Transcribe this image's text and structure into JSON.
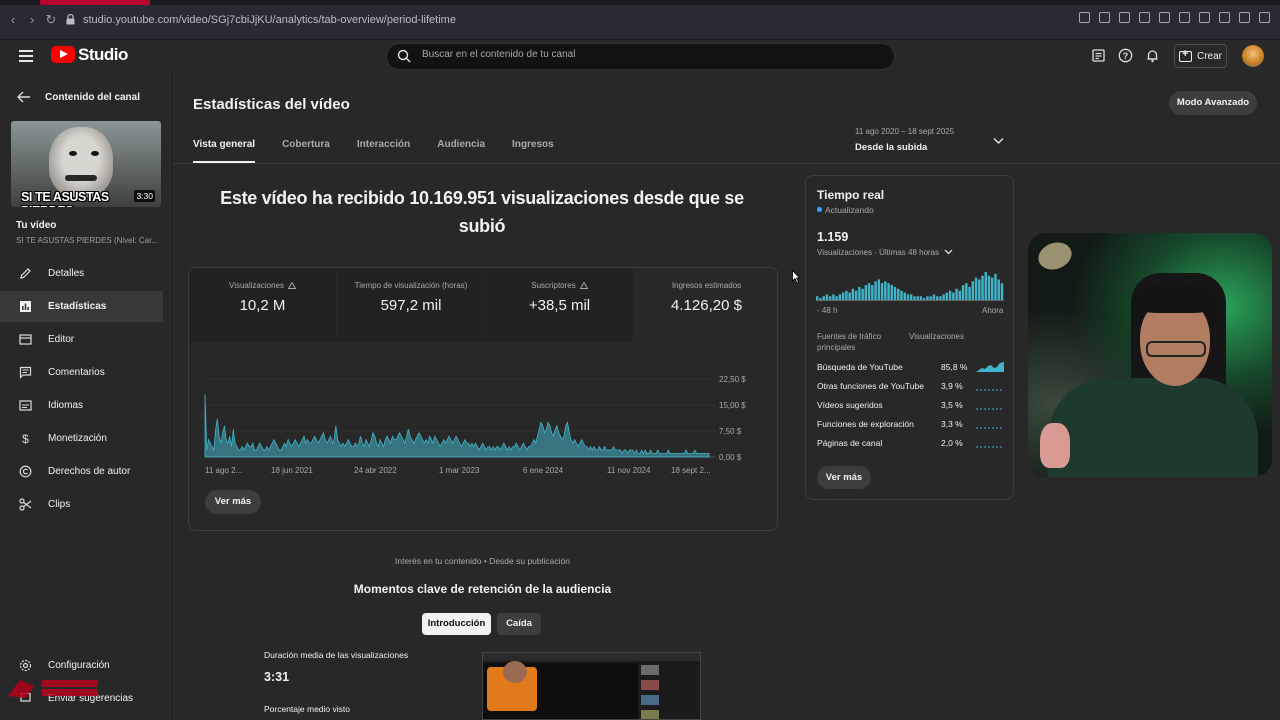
{
  "browser": {
    "url": "studio.youtube.com/video/SGj7cbiJjKU/analytics/tab-overview/period-lifetime"
  },
  "header": {
    "app_name": "Studio",
    "search_placeholder": "Buscar en el contenido de tu canal",
    "create_label": "Crear"
  },
  "sidebar": {
    "back_label": "Contenido del canal",
    "thumbnail_caption": "SI TE ASUSTAS PIERDES",
    "thumbnail_duration": "3:30",
    "your_video_label": "Tu vídeo",
    "your_video_title": "SI TE ASUSTAS PIERDES (Nivel: Car...",
    "items": [
      {
        "label": "Detalles",
        "icon": "pencil-icon"
      },
      {
        "label": "Estadísticas",
        "icon": "analytics-icon",
        "active": true
      },
      {
        "label": "Editor",
        "icon": "editor-icon"
      },
      {
        "label": "Comentarios",
        "icon": "comments-icon"
      },
      {
        "label": "Idiomas",
        "icon": "subtitles-icon"
      },
      {
        "label": "Monetización",
        "icon": "dollar-icon"
      },
      {
        "label": "Derechos de autor",
        "icon": "copyright-icon"
      },
      {
        "label": "Clips",
        "icon": "scissors-icon"
      }
    ],
    "settings_label": "Configuración",
    "feedback_label": "Enviar sugerencias"
  },
  "main": {
    "title": "Estadísticas del vídeo",
    "advanced_mode": "Modo Avanzado",
    "tabs": [
      {
        "label": "Vista general",
        "active": true
      },
      {
        "label": "Cobertura"
      },
      {
        "label": "Interacción"
      },
      {
        "label": "Audiencia"
      },
      {
        "label": "Ingresos"
      }
    ],
    "date_range": {
      "dates": "11 ago 2020 – 18 sept 2025",
      "label": "Desde la subida"
    },
    "headline": "Este vídeo ha recibido 10.169.951 visualizaciones desde que se subió",
    "metrics": [
      {
        "label": "Visualizaciones",
        "value": "10,2 M",
        "warning": true
      },
      {
        "label": "Tiempo de visualización (horas)",
        "value": "597,2 mil"
      },
      {
        "label": "Suscriptores",
        "value": "+38,5 mil",
        "warning": true
      },
      {
        "label": "Ingresos estimados",
        "value": "4.126,20 $"
      }
    ],
    "see_more": "Ver más",
    "interest_note": "Interés en tu contenido • Desde su publicación",
    "moments_title": "Momentos clave de retención de la audiencia",
    "moment_tabs": [
      "Introducción",
      "Caída"
    ],
    "avg_duration_label": "Duración media de las visualizaciones",
    "avg_duration_value": "3:31",
    "avg_percent_label": "Porcentaje medio visto"
  },
  "realtime": {
    "title": "Tiempo real",
    "status": "Actualizando",
    "count": "1.159",
    "subtitle": "Visualizaciones · Últimas 48 horas",
    "axis_start": "- 48 h",
    "axis_end": "Ahora",
    "col_source": "Fuentes de tráfico principales",
    "col_views": "Visualizaciones",
    "sources": [
      {
        "name": "Búsqueda de YouTube",
        "pct": "85,8 %"
      },
      {
        "name": "Otras funciones de YouTube",
        "pct": "3,9 %"
      },
      {
        "name": "Vídeos sugeridos",
        "pct": "3,5 %"
      },
      {
        "name": "Funciones de exploración",
        "pct": "3,3 %"
      },
      {
        "name": "Páginas de canal",
        "pct": "2,0 %"
      }
    ],
    "see_more": "Ver más"
  },
  "chart_data": {
    "type": "area",
    "x_tick_labels": [
      "11 ago 2...",
      "18 jun 2021",
      "24 abr 2022",
      "1 mar 2023",
      "6 ene 2024",
      "11 nov 2024",
      "18 sept 2..."
    ],
    "y_tick_labels": [
      "22,50 $",
      "15,00 $",
      "7,50 $",
      "0,00 $"
    ],
    "ylim": [
      0,
      22.5
    ],
    "color": "#41b4c9",
    "values": [
      18,
      2,
      5,
      4,
      3,
      2,
      8,
      11,
      6,
      4,
      7,
      9,
      5,
      4,
      6,
      3,
      8,
      4,
      3,
      2,
      2,
      3,
      2,
      3,
      4,
      3,
      3,
      4,
      2,
      2,
      3,
      4,
      3,
      2,
      2,
      3,
      2,
      3,
      4,
      5,
      4,
      3,
      2,
      2,
      3,
      4,
      3,
      5,
      4,
      3,
      4,
      5,
      4,
      3,
      4,
      5,
      6,
      4,
      5,
      4,
      4,
      5,
      6,
      5,
      4,
      5,
      6,
      7,
      5,
      4,
      5,
      6,
      4,
      5,
      9,
      5,
      4,
      3,
      4,
      3,
      4,
      5,
      4,
      3,
      3,
      4,
      3,
      4,
      6,
      4,
      3,
      5,
      4,
      3,
      5,
      7,
      6,
      4,
      3,
      5,
      4,
      3,
      5,
      6,
      5,
      4,
      6,
      5,
      5,
      6,
      7,
      6,
      5,
      4,
      6,
      8,
      6,
      5,
      4,
      5,
      6,
      7,
      6,
      5,
      4,
      5,
      4,
      6,
      5,
      4,
      6,
      5,
      4,
      3,
      4,
      5,
      4,
      5,
      6,
      5,
      4,
      5,
      6,
      5,
      4,
      3,
      4,
      5,
      4,
      4,
      3,
      4,
      3,
      4,
      3,
      2,
      3,
      4,
      3,
      2,
      3,
      3,
      2,
      3,
      2,
      3,
      3,
      2,
      3,
      4,
      3,
      2,
      3,
      2,
      3,
      3,
      4,
      3,
      2,
      3,
      4,
      3,
      2,
      3,
      3,
      4,
      5,
      4,
      6,
      8,
      10,
      9,
      7,
      8,
      10,
      9,
      7,
      6,
      8,
      9,
      7,
      6,
      5,
      6,
      9,
      10,
      7,
      5,
      4,
      5,
      4,
      3,
      4,
      5,
      4,
      3,
      3,
      2,
      3,
      2,
      3,
      2,
      2,
      3,
      2,
      2,
      3,
      2,
      2,
      2,
      2,
      3,
      2,
      2,
      2,
      2,
      1,
      2,
      2,
      1,
      2,
      2,
      2,
      1,
      2,
      1,
      1,
      2,
      1,
      2,
      1,
      1,
      2,
      1,
      1,
      1,
      2,
      1,
      1,
      1,
      1,
      1,
      2,
      1,
      1,
      1,
      1,
      1,
      1,
      1,
      1,
      1,
      2,
      1,
      1,
      1,
      1,
      2,
      1,
      1,
      1,
      1,
      1,
      1,
      1,
      1
    ]
  },
  "realtime_chart": {
    "values": [
      2,
      1,
      2,
      3,
      2,
      3,
      2,
      3,
      4,
      5,
      4,
      6,
      5,
      7,
      6,
      8,
      9,
      8,
      10,
      11,
      9,
      10,
      9,
      8,
      7,
      6,
      5,
      4,
      3,
      3,
      2,
      2,
      2,
      1,
      2,
      2,
      3,
      2,
      2,
      3,
      4,
      5,
      4,
      6,
      5,
      8,
      9,
      7,
      10,
      12,
      11,
      13,
      15,
      13,
      12,
      14,
      11,
      9
    ]
  }
}
